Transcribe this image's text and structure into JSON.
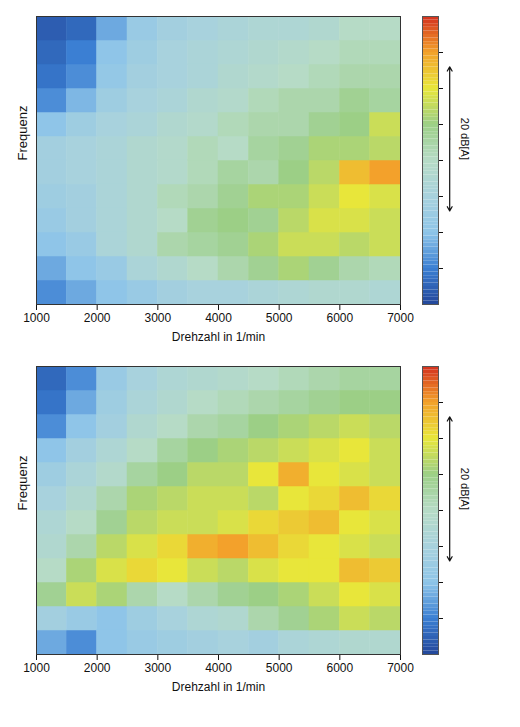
{
  "chart_data": [
    {
      "type": "heatmap",
      "x_label": "Drehzahl in 1/min",
      "y_label": "Frequenz",
      "xlim": [
        1000,
        7000
      ],
      "xticks": [
        1000,
        2000,
        3000,
        4000,
        5000,
        6000,
        7000
      ],
      "ylim": [
        0,
        12
      ],
      "tick_labels": "x",
      "x_bins": [
        1000,
        1500,
        2000,
        2500,
        3000,
        3500,
        4000,
        4500,
        5000,
        5500,
        6000,
        6500,
        7000
      ],
      "y_bins": [
        0,
        1,
        2,
        3,
        4,
        5,
        6,
        7,
        8,
        9,
        10,
        11,
        12
      ],
      "cells": [
        [
          6,
          8,
          10,
          12,
          14,
          15,
          15,
          16,
          17,
          18,
          18,
          17
        ],
        [
          8,
          10,
          12,
          16,
          18,
          20,
          22,
          24,
          26,
          24,
          22,
          21
        ],
        [
          10,
          12,
          16,
          18,
          22,
          23,
          24,
          26,
          28,
          28,
          27,
          28
        ],
        [
          12,
          14,
          16,
          18,
          20,
          24,
          25,
          24,
          27,
          29,
          29,
          28
        ],
        [
          13,
          14,
          16,
          18,
          21,
          22,
          24,
          26,
          26,
          28,
          30,
          29
        ],
        [
          14,
          15,
          16,
          18,
          19,
          21,
          23,
          22,
          25,
          27,
          33,
          35
        ],
        [
          14,
          15,
          16,
          18,
          19,
          21,
          20,
          23,
          24,
          26,
          26,
          27
        ],
        [
          10,
          13,
          15,
          16,
          18,
          19,
          21,
          22,
          22,
          24,
          25,
          28
        ],
        [
          6,
          9,
          13,
          15,
          16,
          18,
          19,
          21,
          22,
          22,
          24,
          23
        ],
        [
          4,
          6,
          11,
          14,
          15,
          16,
          18,
          19,
          20,
          21,
          22,
          22
        ],
        [
          3,
          5,
          10,
          13,
          15,
          16,
          17,
          18,
          19,
          20,
          21,
          21
        ],
        [
          2,
          3,
          8,
          12,
          14,
          15,
          16,
          17,
          17,
          18,
          20,
          20
        ]
      ],
      "colorbar": {
        "range": [
          0,
          40
        ],
        "ticks": [
          5,
          10,
          15,
          20,
          25,
          30,
          35
        ],
        "span": [
          13,
          33
        ],
        "span_label": "20 dB[A]"
      }
    },
    {
      "type": "heatmap",
      "x_label": "Drehzahl in 1/min",
      "y_label": "Frequenz",
      "xlim": [
        1000,
        7000
      ],
      "xticks": [
        1000,
        2000,
        3000,
        4000,
        5000,
        6000,
        7000
      ],
      "ylim": [
        0,
        12
      ],
      "tick_labels": "x",
      "x_bins": [
        1000,
        1500,
        2000,
        2500,
        3000,
        3500,
        4000,
        4500,
        5000,
        5500,
        6000,
        6500,
        7000
      ],
      "y_bins": [
        0,
        1,
        2,
        3,
        4,
        5,
        6,
        7,
        8,
        9,
        10,
        11,
        12
      ],
      "cells": [
        [
          8,
          6,
          10,
          12,
          13,
          14,
          15,
          14,
          16,
          17,
          18,
          18
        ],
        [
          14,
          12,
          10,
          13,
          15,
          17,
          18,
          22,
          24,
          26,
          28,
          27
        ],
        [
          24,
          28,
          26,
          22,
          20,
          22,
          24,
          25,
          26,
          28,
          30,
          29
        ],
        [
          20,
          26,
          29,
          31,
          30,
          28,
          27,
          29,
          30,
          30,
          33,
          32
        ],
        [
          18,
          22,
          27,
          29,
          31,
          34,
          35,
          33,
          31,
          30,
          29,
          28
        ],
        [
          17,
          20,
          24,
          27,
          28,
          28,
          29,
          31,
          32,
          33,
          30,
          29
        ],
        [
          15,
          18,
          22,
          26,
          27,
          28,
          28,
          27,
          30,
          31,
          33,
          31
        ],
        [
          13,
          16,
          19,
          23,
          25,
          27,
          27,
          30,
          34,
          30,
          29,
          28
        ],
        [
          10,
          14,
          17,
          20,
          23,
          25,
          26,
          27,
          28,
          29,
          30,
          28
        ],
        [
          6,
          10,
          14,
          18,
          20,
          22,
          23,
          25,
          26,
          27,
          28,
          27
        ],
        [
          4,
          8,
          13,
          16,
          18,
          20,
          21,
          22,
          23,
          24,
          25,
          25
        ],
        [
          3,
          6,
          12,
          15,
          17,
          18,
          19,
          20,
          21,
          22,
          23,
          23
        ]
      ],
      "colorbar": {
        "range": [
          0,
          40
        ],
        "ticks": [
          5,
          10,
          15,
          20,
          25,
          30,
          35
        ],
        "span": [
          13,
          33
        ],
        "span_label": "20 dB[A]"
      }
    }
  ]
}
